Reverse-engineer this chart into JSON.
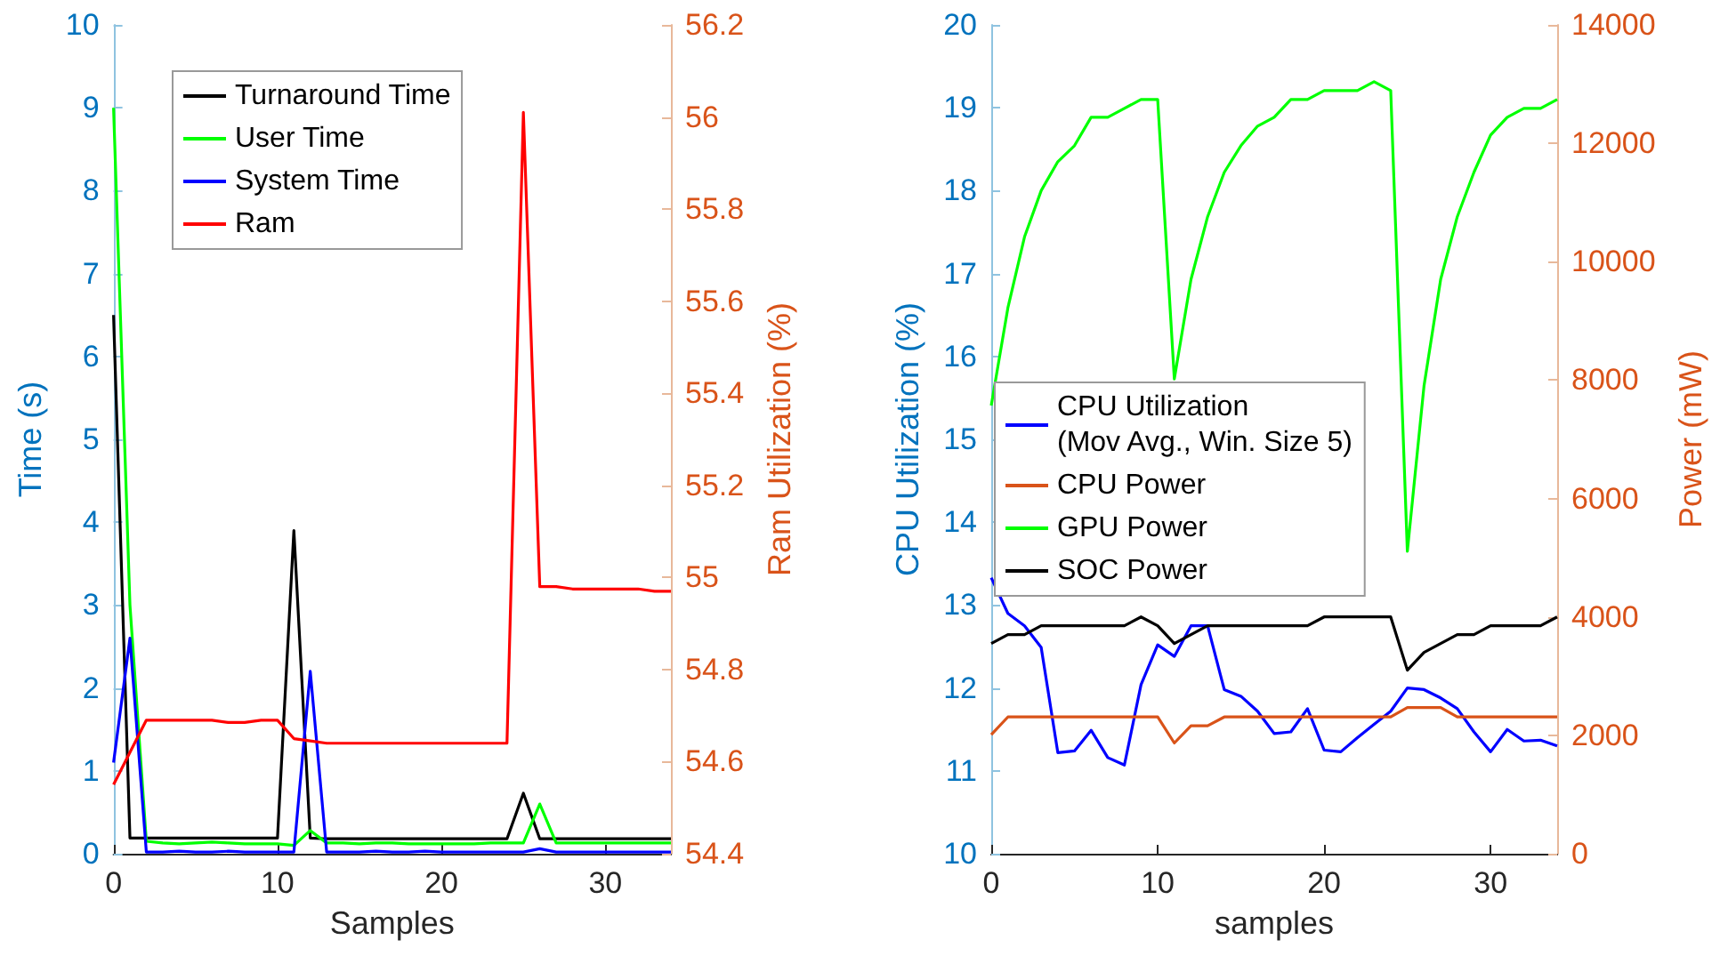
{
  "chart_data": [
    {
      "type": "line",
      "xlabel": "Samples",
      "ylabel": "Time (s)",
      "y2label": "Ram Utilization (%)",
      "legend": "top left",
      "marker": "none",
      "line_style": "solid",
      "x": [
        0,
        1,
        2,
        3,
        4,
        5,
        6,
        7,
        8,
        9,
        10,
        11,
        12,
        13,
        14,
        15,
        16,
        17,
        18,
        19,
        20,
        21,
        22,
        23,
        24,
        25,
        26,
        27,
        28,
        29,
        30,
        31,
        32,
        33,
        34
      ],
      "xlim": [
        0,
        34
      ],
      "xticks": [
        0,
        10,
        20,
        30
      ],
      "ylim": [
        0,
        10
      ],
      "yticks": [
        0,
        1,
        2,
        3,
        4,
        5,
        6,
        7,
        8,
        9,
        10
      ],
      "y2lim": [
        54.4,
        56.2
      ],
      "y2ticks": [
        54.4,
        54.6,
        54.8,
        55,
        55.2,
        55.4,
        55.6,
        55.8,
        56,
        56.2
      ],
      "series": [
        {
          "name": "Turnaround Time",
          "color": "#000000",
          "values": [
            6.5,
            0.19,
            0.19,
            0.19,
            0.19,
            0.19,
            0.19,
            0.19,
            0.19,
            0.19,
            0.19,
            3.9,
            0.19,
            0.18,
            0.18,
            0.18,
            0.18,
            0.18,
            0.18,
            0.18,
            0.18,
            0.18,
            0.18,
            0.18,
            0.18,
            0.73,
            0.18,
            0.18,
            0.18,
            0.18,
            0.18,
            0.18,
            0.18,
            0.18,
            0.18
          ]
        },
        {
          "name": "User Time",
          "color": "#00ff00",
          "values": [
            9.0,
            3.0,
            0.15,
            0.13,
            0.12,
            0.13,
            0.14,
            0.13,
            0.12,
            0.12,
            0.12,
            0.1,
            0.28,
            0.13,
            0.13,
            0.12,
            0.13,
            0.13,
            0.12,
            0.12,
            0.12,
            0.12,
            0.12,
            0.13,
            0.13,
            0.13,
            0.6,
            0.13,
            0.13,
            0.13,
            0.13,
            0.13,
            0.13,
            0.13,
            0.13
          ]
        },
        {
          "name": "System Time",
          "color": "#0000ff",
          "values": [
            1.1,
            2.6,
            0.02,
            0.02,
            0.03,
            0.02,
            0.02,
            0.03,
            0.02,
            0.02,
            0.02,
            0.02,
            2.2,
            0.02,
            0.02,
            0.02,
            0.03,
            0.02,
            0.02,
            0.03,
            0.02,
            0.02,
            0.02,
            0.02,
            0.02,
            0.02,
            0.06,
            0.02,
            0.02,
            0.02,
            0.02,
            0.02,
            0.02,
            0.02,
            0.02
          ]
        },
        {
          "name": "Ram",
          "color": "#ff0000",
          "axis": "y2",
          "values": [
            54.55,
            54.62,
            54.69,
            54.69,
            54.69,
            54.69,
            54.69,
            54.685,
            54.685,
            54.69,
            54.69,
            54.65,
            54.645,
            54.64,
            54.64,
            54.64,
            54.64,
            54.64,
            54.64,
            54.64,
            54.64,
            54.64,
            54.64,
            54.64,
            54.64,
            56.01,
            54.98,
            54.98,
            54.975,
            54.975,
            54.975,
            54.975,
            54.975,
            54.97,
            54.97
          ]
        }
      ]
    },
    {
      "type": "line",
      "xlabel": "samples",
      "ylabel": "CPU Utilization (%)",
      "y2label": "Power (mW)",
      "legend": "left",
      "marker": "none",
      "line_style": "solid",
      "x": [
        0,
        1,
        2,
        3,
        4,
        5,
        6,
        7,
        8,
        9,
        10,
        11,
        12,
        13,
        14,
        15,
        16,
        17,
        18,
        19,
        20,
        21,
        22,
        23,
        24,
        25,
        26,
        27,
        28,
        29,
        30,
        31,
        32,
        33,
        34
      ],
      "xlim": [
        0,
        34
      ],
      "xticks": [
        0,
        10,
        20,
        30
      ],
      "ylim": [
        10,
        20
      ],
      "yticks": [
        10,
        11,
        12,
        13,
        14,
        15,
        16,
        17,
        18,
        19,
        20
      ],
      "y2lim": [
        0,
        14000
      ],
      "y2ticks": [
        0,
        2000,
        4000,
        6000,
        8000,
        10000,
        12000,
        14000
      ],
      "series": [
        {
          "name": "CPU Utilization\n(Mov Avg., Win. Size 5)",
          "color": "#0000ff",
          "values": [
            13.33,
            12.9,
            12.75,
            12.49,
            11.22,
            11.24,
            11.49,
            11.16,
            11.07,
            12.04,
            12.52,
            12.38,
            12.75,
            12.75,
            11.98,
            11.9,
            11.72,
            11.45,
            11.47,
            11.75,
            11.25,
            11.23,
            11.4,
            11.56,
            11.72,
            12.0,
            11.98,
            11.88,
            11.75,
            11.47,
            11.23,
            11.5,
            11.36,
            11.37,
            11.3
          ]
        },
        {
          "name": "CPU Power",
          "color": "#d95319",
          "axis": "y2",
          "values": [
            2010,
            2310,
            2310,
            2310,
            2310,
            2310,
            2310,
            2310,
            2310,
            2310,
            2310,
            1870,
            2160,
            2160,
            2310,
            2310,
            2310,
            2310,
            2310,
            2310,
            2310,
            2310,
            2310,
            2310,
            2310,
            2470,
            2470,
            2470,
            2310,
            2310,
            2310,
            2310,
            2310,
            2310,
            2310
          ]
        },
        {
          "name": "GPU Power",
          "color": "#00ff00",
          "axis": "y2",
          "values": [
            7570,
            9220,
            10420,
            11200,
            11690,
            11960,
            12440,
            12440,
            12590,
            12740,
            12740,
            8020,
            9700,
            10760,
            11510,
            11960,
            12290,
            12440,
            12740,
            12740,
            12890,
            12890,
            12890,
            13040,
            12890,
            5110,
            7900,
            9700,
            10760,
            11510,
            12140,
            12440,
            12590,
            12590,
            12740
          ]
        },
        {
          "name": "SOC Power",
          "color": "#000000",
          "axis": "y2",
          "values": [
            3550,
            3700,
            3700,
            3850,
            3850,
            3850,
            3850,
            3850,
            3850,
            4000,
            3850,
            3550,
            3700,
            3850,
            3850,
            3850,
            3850,
            3850,
            3850,
            3850,
            4000,
            4000,
            4000,
            4000,
            4000,
            3100,
            3400,
            3550,
            3700,
            3700,
            3850,
            3850,
            3850,
            3850,
            4000
          ]
        }
      ]
    }
  ]
}
